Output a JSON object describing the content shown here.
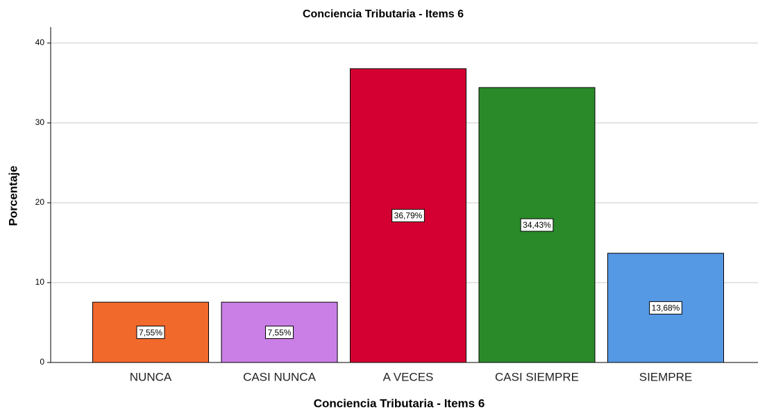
{
  "chart_data": {
    "type": "bar",
    "title": "Conciencia Tributaria - Items 6",
    "x_label": "Conciencia Tributaria - Items 6",
    "y_label": "Porcentaje",
    "categories": [
      "NUNCA",
      "CASI NUNCA",
      "A VECES",
      "CASI SIEMPRE",
      "SIEMPRE"
    ],
    "values": [
      7.55,
      7.55,
      36.79,
      34.43,
      13.68
    ],
    "value_labels": [
      "7,55%",
      "7,55%",
      "36,79%",
      "34,43%",
      "13,68%"
    ],
    "colors": [
      "#f2692c",
      "#c97fe6",
      "#d40032",
      "#2a8a2a",
      "#5598e4"
    ],
    "ylim": [
      0,
      42
    ],
    "yticks": [
      0,
      10,
      20,
      30,
      40
    ],
    "grid": true
  }
}
